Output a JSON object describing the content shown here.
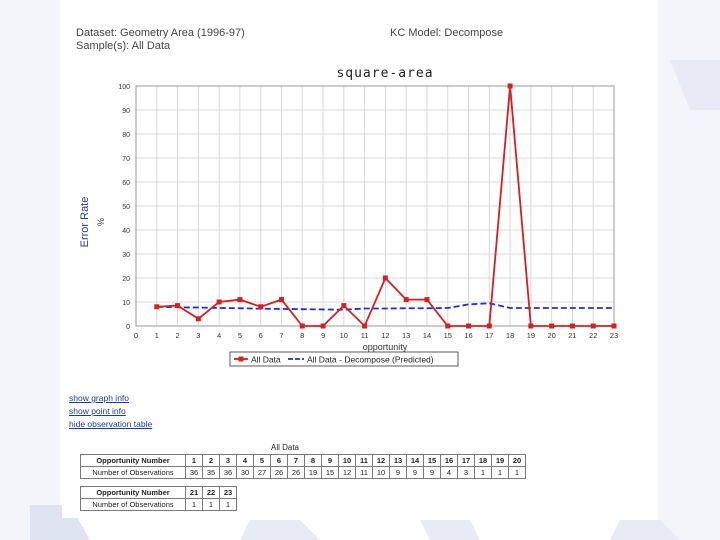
{
  "header": {
    "dataset": "Dataset: Geometry Area (1996-97)",
    "sample": "Sample(s): All Data",
    "kc_model": "KC Model: Decompose"
  },
  "chart_data": {
    "type": "line",
    "title": "square-area",
    "xlabel": "opportunity",
    "ylabel": "Error Rate",
    "ylabel_unit": "%",
    "xlim": [
      0,
      23
    ],
    "ylim": [
      0,
      100
    ],
    "x_ticks": [
      0,
      1,
      2,
      3,
      4,
      5,
      6,
      7,
      8,
      9,
      10,
      11,
      12,
      13,
      14,
      15,
      16,
      17,
      18,
      19,
      20,
      21,
      22,
      23
    ],
    "y_ticks": [
      0,
      10,
      20,
      30,
      40,
      50,
      60,
      70,
      80,
      90,
      100
    ],
    "grid": true,
    "legend_position": "bottom",
    "series": [
      {
        "name": "All Data",
        "color": "#d42020",
        "style": "solid-square-markers",
        "x": [
          1,
          2,
          3,
          4,
          5,
          6,
          7,
          8,
          9,
          10,
          11,
          12,
          13,
          14,
          15,
          16,
          17,
          18,
          19,
          20,
          21,
          22,
          23
        ],
        "values": [
          8,
          8.5,
          3,
          10,
          11,
          8,
          11,
          0,
          0,
          8.5,
          0,
          20,
          11,
          11,
          0,
          0,
          0,
          100,
          0,
          0,
          0,
          0,
          0
        ]
      },
      {
        "name": "All Data - Decompose (Predicted)",
        "color": "#1f2fd6",
        "style": "dashed",
        "x": [
          1,
          2,
          3,
          4,
          5,
          6,
          7,
          8,
          9,
          10,
          11,
          12,
          13,
          14,
          15,
          16,
          17,
          18,
          19,
          20,
          21,
          22,
          23
        ],
        "values": [
          8,
          7.8,
          7.7,
          7.5,
          7.4,
          7.2,
          7.1,
          7,
          6.9,
          6.8,
          7.3,
          7.3,
          7.4,
          7.4,
          7.5,
          9,
          9.5,
          7.5,
          7.5,
          7.5,
          7.5,
          7.5,
          7.5
        ]
      }
    ]
  },
  "links": {
    "show_graph_info": "show graph info",
    "show_point_info": "show point info",
    "hide_observation_table": "hide observation table"
  },
  "observation_table": {
    "title": "All Data",
    "row_label_opportunity": "Opportunity Number",
    "row_label_observations": "Number of Observations",
    "part1": {
      "opportunity": [
        "1",
        "2",
        "3",
        "4",
        "5",
        "6",
        "7",
        "8",
        "9",
        "10",
        "11",
        "12",
        "13",
        "14",
        "15",
        "16",
        "17",
        "18",
        "19",
        "20"
      ],
      "observations": [
        "36",
        "35",
        "36",
        "30",
        "27",
        "26",
        "26",
        "19",
        "15",
        "12",
        "11",
        "10",
        "9",
        "9",
        "9",
        "4",
        "3",
        "1",
        "1",
        "1"
      ]
    },
    "part2": {
      "opportunity": [
        "21",
        "22",
        "23"
      ],
      "observations": [
        "1",
        "1",
        "1"
      ]
    }
  }
}
